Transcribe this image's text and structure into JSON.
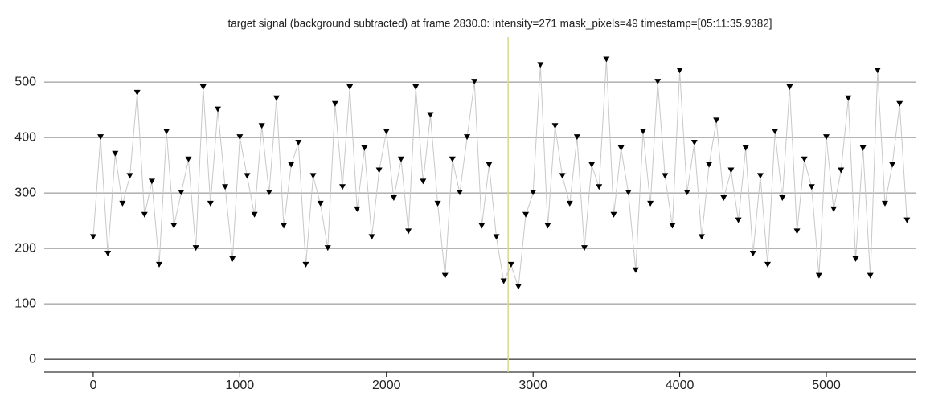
{
  "chart_data": {
    "type": "line",
    "title": "target signal (background subtracted) at frame 2830.0: intensity=271 mask_pixels=49 timestamp=[05:11:35.9382]",
    "x": [
      0,
      50,
      100,
      150,
      200,
      250,
      300,
      350,
      400,
      450,
      500,
      550,
      600,
      650,
      700,
      750,
      800,
      850,
      900,
      950,
      1000,
      1050,
      1100,
      1150,
      1200,
      1250,
      1300,
      1350,
      1400,
      1450,
      1500,
      1550,
      1600,
      1650,
      1700,
      1750,
      1800,
      1850,
      1900,
      1950,
      2000,
      2050,
      2100,
      2150,
      2200,
      2250,
      2300,
      2350,
      2400,
      2450,
      2500,
      2550,
      2600,
      2650,
      2700,
      2750,
      2800,
      2850,
      2900,
      2950,
      3000,
      3050,
      3100,
      3150,
      3200,
      3250,
      3300,
      3350,
      3400,
      3450,
      3500,
      3550,
      3600,
      3650,
      3700,
      3750,
      3800,
      3850,
      3900,
      3950,
      4000,
      4050,
      4100,
      4150,
      4200,
      4250,
      4300,
      4350,
      4400,
      4450,
      4500,
      4550,
      4600,
      4650,
      4700,
      4750,
      4800,
      4850,
      4900,
      4950,
      5000,
      5050,
      5100,
      5150,
      5200,
      5250,
      5300,
      5350,
      5400,
      5450,
      5500,
      5550
    ],
    "series": [
      {
        "color": "#000000",
        "line_color": "#c8c8c8",
        "values": [
          220,
          400,
          190,
          370,
          280,
          330,
          480,
          260,
          320,
          170,
          410,
          240,
          300,
          360,
          200,
          490,
          280,
          450,
          310,
          180,
          400,
          330,
          260,
          420,
          300,
          470,
          240,
          350,
          390,
          170,
          330,
          280,
          200,
          460,
          310,
          490,
          270,
          380,
          220,
          340,
          410,
          290,
          360,
          230,
          490,
          320,
          440,
          280,
          150,
          360,
          300,
          400,
          500,
          240,
          350,
          220,
          140,
          170,
          130,
          260,
          300,
          530,
          240,
          420,
          330,
          280,
          400,
          200,
          350,
          310,
          540,
          260,
          380,
          300,
          160,
          410,
          280,
          500,
          330,
          240,
          520,
          300,
          390,
          220,
          350,
          430,
          290,
          340,
          250,
          380,
          190,
          330,
          170,
          410,
          290,
          490,
          230,
          360,
          310,
          150,
          400,
          270,
          340,
          470,
          180,
          380,
          150,
          520,
          280,
          350,
          460,
          250
        ]
      }
    ],
    "xlim": [
      -334,
      5614
    ],
    "ylim": [
      -23,
      590
    ],
    "xticks": [
      0,
      1000,
      2000,
      3000,
      4000,
      5000
    ],
    "yticks": [
      0,
      100,
      200,
      300,
      400,
      500
    ],
    "grid": true,
    "cursor_x": 2830,
    "cursor_color": "#d8d890"
  }
}
